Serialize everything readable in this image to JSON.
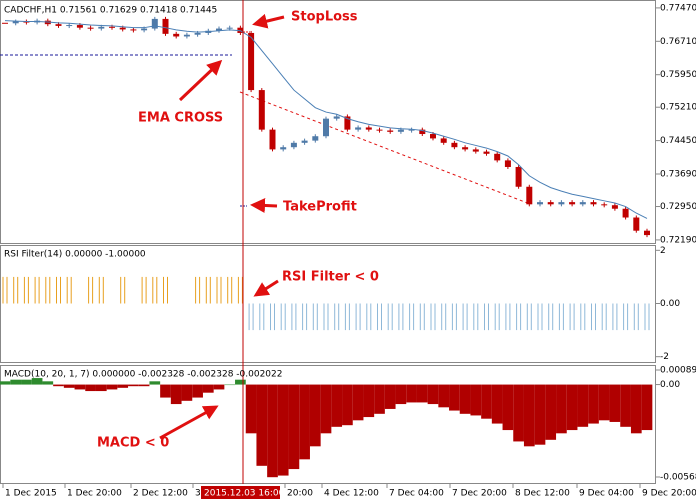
{
  "chart_data": [
    {
      "type": "candlestick",
      "title": "CADCHF,H1  0.71561 0.71629 0.71418 0.71445",
      "values": [
        0.7712,
        0.7716,
        0.7714,
        0.7718,
        0.771,
        0.7706,
        0.7708,
        0.7702,
        0.77,
        0.7704,
        0.7702,
        0.7698,
        0.7696,
        0.77,
        0.7722,
        0.7688,
        0.7682,
        0.7686,
        0.769,
        0.7695,
        0.77,
        0.7702,
        0.769,
        0.756,
        0.747,
        0.7425,
        0.743,
        0.744,
        0.7445,
        0.7455,
        0.7495,
        0.75,
        0.747,
        0.7475,
        0.747,
        0.7468,
        0.7465,
        0.747,
        0.747,
        0.746,
        0.745,
        0.744,
        0.743,
        0.7425,
        0.742,
        0.7415,
        0.74,
        0.7385,
        0.734,
        0.73,
        0.7305,
        0.73,
        0.7305,
        0.73,
        0.7305,
        0.73,
        0.7298,
        0.729,
        0.727,
        0.724,
        0.723
      ],
      "ema_values": [
        0.7718,
        0.7717,
        0.7716,
        0.7716,
        0.7715,
        0.7713,
        0.7712,
        0.771,
        0.7708,
        0.7707,
        0.7706,
        0.7704,
        0.7702,
        0.7702,
        0.7706,
        0.7702,
        0.7697,
        0.7694,
        0.7692,
        0.7693,
        0.7695,
        0.7697,
        0.7695,
        0.768,
        0.765,
        0.762,
        0.759,
        0.756,
        0.754,
        0.752,
        0.751,
        0.7505,
        0.7495,
        0.7488,
        0.7482,
        0.7478,
        0.7474,
        0.7472,
        0.7471,
        0.7468,
        0.7462,
        0.7455,
        0.7448,
        0.744,
        0.7434,
        0.7428,
        0.742,
        0.741,
        0.739,
        0.7365,
        0.735,
        0.7338,
        0.733,
        0.7323,
        0.7318,
        0.7313,
        0.7308,
        0.7303,
        0.7295,
        0.728,
        0.7268
      ],
      "up_color": "#4f7aa8",
      "down_color": "#c00000",
      "ema_color": "#4a7fb5",
      "ylim": [
        0.7212,
        0.7765
      ],
      "yticks": [
        {
          "value": 0.7747,
          "label": "0.77470"
        },
        {
          "value": 0.7671,
          "label": "0.76710"
        },
        {
          "value": 0.7595,
          "label": "0.75950"
        },
        {
          "value": 0.7521,
          "label": "0.75210"
        },
        {
          "value": 0.7445,
          "label": "0.74450"
        },
        {
          "value": 0.7369,
          "label": "0.73690"
        },
        {
          "value": 0.7295,
          "label": "0.72950"
        },
        {
          "value": 0.7219,
          "label": "0.72190"
        }
      ]
    },
    {
      "type": "bar",
      "title": "RSI Filter(14) 0.00000 -1.00000",
      "values": [
        1,
        1,
        1,
        1,
        1,
        1,
        1,
        null,
        1,
        1,
        null,
        1,
        null,
        1,
        1,
        1,
        null,
        null,
        1,
        1,
        1,
        1,
        1,
        -1,
        -1,
        -1,
        -1,
        -1,
        -1,
        -1,
        -1,
        -1,
        -1,
        -1,
        -1,
        -1,
        -1,
        -1,
        -1,
        -1,
        -1,
        -1,
        -1,
        -1,
        -1,
        -1,
        -1,
        -1,
        -1,
        -1,
        -1,
        -1,
        -1,
        -1,
        -1,
        -1,
        -1,
        -1,
        -1,
        -1,
        -1
      ],
      "pos_color": "#e8a020",
      "neg_color": "#8fb8d8",
      "ylim": [
        -2.2,
        2.2
      ],
      "yticks": [
        2,
        {
          "value": 0,
          "label": "0.00"
        },
        -2
      ]
    },
    {
      "type": "bar",
      "title": "MACD(10, 20, 1, 7) 0.000000 -0.002328 -0.002328 -0.002022",
      "values": [
        0.0002,
        0.0003,
        0.0003,
        0.0004,
        0.0002,
        -0.0001,
        -0.0002,
        -0.0003,
        -0.0004,
        -0.0004,
        -0.0003,
        -0.0002,
        -0.0001,
        -0.0001,
        0.0002,
        -0.0008,
        -0.0012,
        -0.001,
        -0.0008,
        -0.0005,
        -0.0003,
        0.0,
        0.0003,
        -0.003,
        -0.005,
        -0.0057,
        -0.0056,
        -0.0052,
        -0.0046,
        -0.0038,
        -0.003,
        -0.0026,
        -0.0025,
        -0.0022,
        -0.002,
        -0.0018,
        -0.0015,
        -0.0012,
        -0.0011,
        -0.0011,
        -0.0012,
        -0.0014,
        -0.0016,
        -0.0018,
        -0.0019,
        -0.0021,
        -0.0024,
        -0.0028,
        -0.0035,
        -0.0038,
        -0.0037,
        -0.0034,
        -0.003,
        -0.0028,
        -0.0026,
        -0.0024,
        -0.0022,
        -0.0023,
        -0.0026,
        -0.003,
        -0.0028
      ],
      "pos_color": "#2e8b2e",
      "neg_color": "#b00000",
      "ylim": [
        -0.006057,
        0.001204
      ],
      "yticks": [
        0.000896,
        {
          "value": 0,
          "label": "0.00"
        },
        -0.005688
      ]
    }
  ],
  "annotations": [
    "StopLoss",
    "EMA CROSS",
    "TakeProfit",
    "RSI Filter < 0",
    "MACD < 0"
  ],
  "x_labels": [
    "1 Dec 2015",
    "1 Dec 20:00",
    "2 Dec 12:00",
    "3",
    "20:00",
    "4 Dec 12:00",
    "7 Dec 04:00",
    "7 Dec 20:00",
    "8 Dec 12:00",
    "9 Dec 04:00",
    "9 Dec 20:00"
  ],
  "cursor_label": "2015.12.03 16:00"
}
